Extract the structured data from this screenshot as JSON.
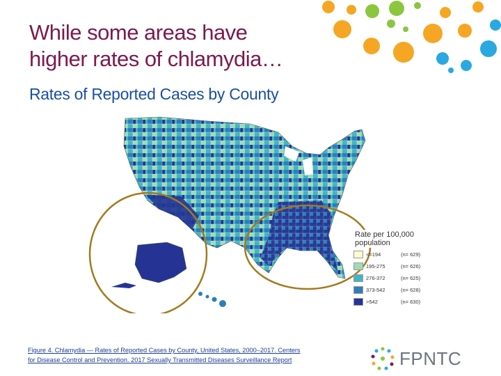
{
  "slide": {
    "title_line1": "While some areas have",
    "title_line2": "higher rates of chlamydia…",
    "subtitle": "Rates of Reported Cases by County"
  },
  "map": {
    "legend_title_line1": "Rate per 100,000",
    "legend_title_line2": "population",
    "legend": [
      {
        "range": "<=194",
        "n": "(n= 629)",
        "color": "#ffffcc"
      },
      {
        "range": "195-275",
        "n": "(n= 626)",
        "color": "#a1dab4"
      },
      {
        "range": "276-372",
        "n": "(n= 625)",
        "color": "#41b6c4"
      },
      {
        "range": "373-542",
        "n": "(n= 628)",
        "color": "#2c7fb8"
      },
      {
        "range": ">542",
        "n": "(n= 630)",
        "color": "#253494"
      }
    ],
    "highlight_color": "#a37a1f"
  },
  "caption": {
    "line1": "Figure 4. Chlamydia — Rates of Reported Cases by County, United States, 2000–2017. Centers",
    "line2": "for Disease Control and Prevention. 2017 Sexually Transmitted Diseases Surveillance Report"
  },
  "logo": {
    "text": "FPNTC"
  },
  "colors": {
    "title": "#7a1a4e",
    "subtitle": "#1a4fa0",
    "dot_orange": "#f5a623",
    "dot_green": "#8cc63f",
    "dot_blue": "#29a9e0"
  }
}
